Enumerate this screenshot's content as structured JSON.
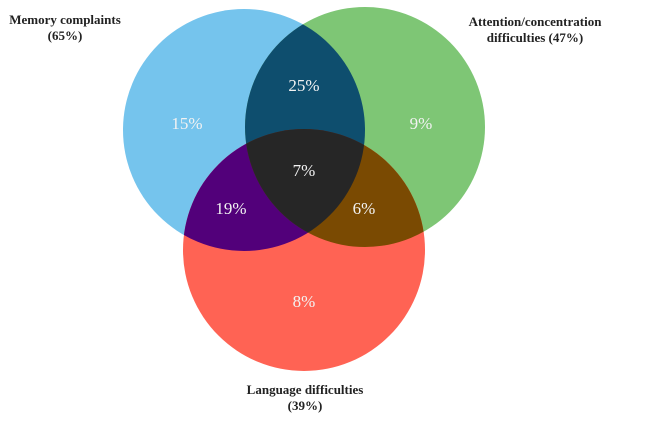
{
  "chart_data": {
    "type": "venn",
    "sets": {
      "names": [
        "Memory complaints",
        "Attention/concentration difficulties",
        "Language difficulties"
      ],
      "values": [
        65,
        47,
        39
      ],
      "value_labels": [
        "(65%)",
        "(47%)",
        "(39%)"
      ],
      "colors": [
        "#75c4ed",
        "#7ec675",
        "#ff6354"
      ]
    },
    "regions": {
      "values": [
        15,
        9,
        8,
        25,
        19,
        6,
        7
      ],
      "value_labels": [
        "15%",
        "9%",
        "8%",
        "25%",
        "19%",
        "6%",
        "7%"
      ],
      "colors": [
        "#75c4ed",
        "#7ec675",
        "#ff6354",
        "#0e4e6e",
        "#52007a",
        "#7a4a02",
        "#262626"
      ]
    }
  }
}
